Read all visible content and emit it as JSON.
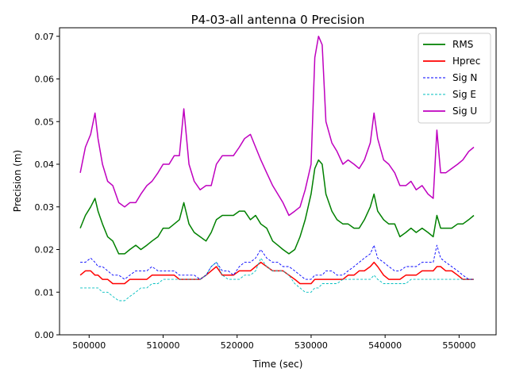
{
  "chart_data": {
    "type": "line",
    "title": "P4-03-all antenna 0 Precision",
    "xlabel": "Time (sec)",
    "ylabel": "Precision (m)",
    "xlim": [
      496000,
      555000
    ],
    "ylim": [
      0.0,
      0.072
    ],
    "xticks": [
      500000,
      510000,
      520000,
      530000,
      540000,
      550000
    ],
    "xtick_labels": [
      "500000",
      "510000",
      "520000",
      "530000",
      "540000",
      "550000"
    ],
    "yticks": [
      0.0,
      0.01,
      0.02,
      0.03,
      0.04,
      0.05,
      0.06,
      0.07
    ],
    "ytick_labels": [
      "0.00",
      "0.01",
      "0.02",
      "0.03",
      "0.04",
      "0.05",
      "0.06",
      "0.07"
    ],
    "grid": false,
    "legend_position": "top-right",
    "x": [
      498800,
      499500,
      500200,
      500800,
      501200,
      501800,
      502500,
      503200,
      504000,
      504800,
      505500,
      506300,
      507000,
      507800,
      508500,
      509300,
      510000,
      510800,
      511500,
      512200,
      512800,
      513500,
      514200,
      515000,
      515800,
      516500,
      517200,
      518000,
      518800,
      519500,
      520300,
      521000,
      521800,
      522500,
      523200,
      524000,
      524800,
      525500,
      526200,
      527000,
      527800,
      528500,
      529200,
      530000,
      530500,
      531000,
      531500,
      532000,
      532800,
      533500,
      534300,
      535000,
      535800,
      536500,
      537200,
      538000,
      538500,
      539000,
      539800,
      540500,
      541300,
      542000,
      542800,
      543500,
      544200,
      545000,
      545800,
      546500,
      547000,
      547500,
      548200,
      549000,
      549800,
      550500,
      551300,
      552000
    ],
    "series": [
      {
        "name": "RMS",
        "color": "#008000",
        "style": "solid",
        "values": [
          0.025,
          0.028,
          0.03,
          0.032,
          0.029,
          0.026,
          0.023,
          0.022,
          0.019,
          0.019,
          0.02,
          0.021,
          0.02,
          0.021,
          0.022,
          0.023,
          0.025,
          0.025,
          0.026,
          0.027,
          0.031,
          0.026,
          0.024,
          0.023,
          0.022,
          0.024,
          0.027,
          0.028,
          0.028,
          0.028,
          0.029,
          0.029,
          0.027,
          0.028,
          0.026,
          0.025,
          0.022,
          0.021,
          0.02,
          0.019,
          0.02,
          0.023,
          0.027,
          0.033,
          0.039,
          0.041,
          0.04,
          0.033,
          0.029,
          0.027,
          0.026,
          0.026,
          0.025,
          0.025,
          0.027,
          0.03,
          0.033,
          0.029,
          0.027,
          0.026,
          0.026,
          0.023,
          0.024,
          0.025,
          0.024,
          0.025,
          0.024,
          0.023,
          0.028,
          0.025,
          0.025,
          0.025,
          0.026,
          0.026,
          0.027,
          0.028
        ]
      },
      {
        "name": "Hprec",
        "color": "#ff0000",
        "style": "solid",
        "values": [
          0.014,
          0.015,
          0.015,
          0.014,
          0.014,
          0.013,
          0.013,
          0.012,
          0.012,
          0.012,
          0.013,
          0.013,
          0.013,
          0.013,
          0.014,
          0.014,
          0.014,
          0.014,
          0.014,
          0.013,
          0.013,
          0.013,
          0.013,
          0.013,
          0.014,
          0.015,
          0.016,
          0.014,
          0.014,
          0.014,
          0.015,
          0.015,
          0.015,
          0.016,
          0.017,
          0.016,
          0.015,
          0.015,
          0.015,
          0.014,
          0.013,
          0.012,
          0.012,
          0.012,
          0.013,
          0.013,
          0.013,
          0.013,
          0.013,
          0.013,
          0.013,
          0.014,
          0.014,
          0.015,
          0.015,
          0.016,
          0.017,
          0.016,
          0.014,
          0.013,
          0.013,
          0.013,
          0.014,
          0.014,
          0.014,
          0.015,
          0.015,
          0.015,
          0.016,
          0.016,
          0.015,
          0.015,
          0.014,
          0.013,
          0.013,
          0.013
        ]
      },
      {
        "name": "Sig N",
        "color": "#0000ff",
        "style": "dashed",
        "values": [
          0.017,
          0.017,
          0.018,
          0.017,
          0.016,
          0.016,
          0.015,
          0.014,
          0.014,
          0.013,
          0.014,
          0.015,
          0.015,
          0.015,
          0.016,
          0.015,
          0.015,
          0.015,
          0.015,
          0.014,
          0.014,
          0.014,
          0.014,
          0.013,
          0.014,
          0.016,
          0.017,
          0.015,
          0.015,
          0.014,
          0.016,
          0.017,
          0.017,
          0.018,
          0.02,
          0.018,
          0.017,
          0.017,
          0.016,
          0.016,
          0.015,
          0.014,
          0.013,
          0.013,
          0.014,
          0.014,
          0.014,
          0.015,
          0.015,
          0.014,
          0.014,
          0.015,
          0.016,
          0.017,
          0.018,
          0.019,
          0.021,
          0.018,
          0.017,
          0.016,
          0.015,
          0.015,
          0.016,
          0.016,
          0.016,
          0.017,
          0.017,
          0.017,
          0.021,
          0.018,
          0.017,
          0.016,
          0.015,
          0.014,
          0.013,
          0.013
        ]
      },
      {
        "name": "Sig E",
        "color": "#00bfbf",
        "style": "dashed",
        "values": [
          0.011,
          0.011,
          0.011,
          0.011,
          0.011,
          0.01,
          0.01,
          0.009,
          0.008,
          0.008,
          0.009,
          0.01,
          0.011,
          0.011,
          0.012,
          0.012,
          0.013,
          0.013,
          0.013,
          0.013,
          0.013,
          0.013,
          0.013,
          0.013,
          0.014,
          0.016,
          0.017,
          0.014,
          0.013,
          0.013,
          0.013,
          0.014,
          0.014,
          0.015,
          0.018,
          0.016,
          0.015,
          0.015,
          0.015,
          0.014,
          0.012,
          0.011,
          0.01,
          0.01,
          0.011,
          0.011,
          0.012,
          0.012,
          0.012,
          0.012,
          0.013,
          0.013,
          0.013,
          0.013,
          0.013,
          0.013,
          0.014,
          0.013,
          0.012,
          0.012,
          0.012,
          0.012,
          0.012,
          0.013,
          0.013,
          0.013,
          0.013,
          0.013,
          0.013,
          0.013,
          0.013,
          0.013,
          0.013,
          0.013,
          0.013,
          0.013
        ]
      },
      {
        "name": "Sig U",
        "color": "#bf00bf",
        "style": "solid",
        "values": [
          0.038,
          0.044,
          0.047,
          0.052,
          0.046,
          0.04,
          0.036,
          0.035,
          0.031,
          0.03,
          0.031,
          0.031,
          0.033,
          0.035,
          0.036,
          0.038,
          0.04,
          0.04,
          0.042,
          0.042,
          0.053,
          0.04,
          0.036,
          0.034,
          0.035,
          0.035,
          0.04,
          0.042,
          0.042,
          0.042,
          0.044,
          0.046,
          0.047,
          0.044,
          0.041,
          0.038,
          0.035,
          0.033,
          0.031,
          0.028,
          0.029,
          0.03,
          0.034,
          0.04,
          0.065,
          0.07,
          0.068,
          0.05,
          0.045,
          0.043,
          0.04,
          0.041,
          0.04,
          0.039,
          0.041,
          0.045,
          0.052,
          0.046,
          0.041,
          0.04,
          0.038,
          0.035,
          0.035,
          0.036,
          0.034,
          0.035,
          0.033,
          0.032,
          0.048,
          0.038,
          0.038,
          0.039,
          0.04,
          0.041,
          0.043,
          0.044
        ]
      }
    ]
  }
}
